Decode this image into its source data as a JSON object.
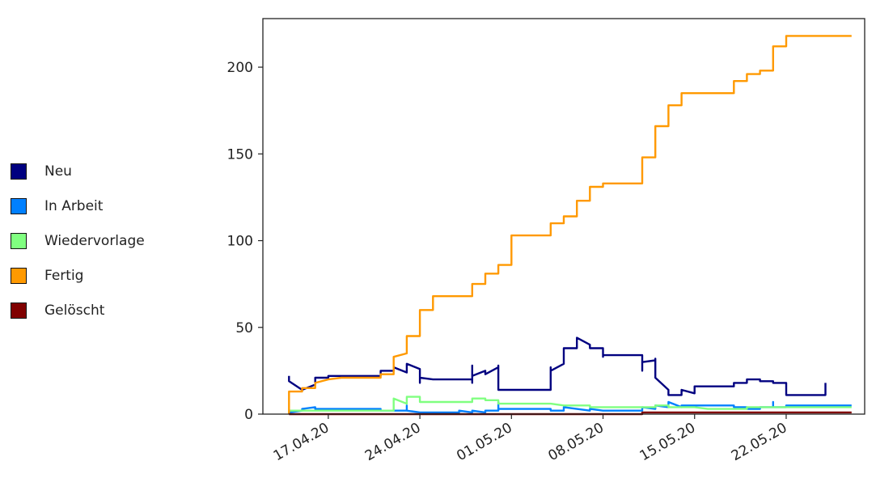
{
  "chart_data": {
    "type": "line",
    "title": "",
    "xlabel": "",
    "ylabel": "",
    "x_start": "2020-04-14",
    "x_end": "2020-05-27",
    "xlim": [
      "2020-04-12",
      "2020-05-28"
    ],
    "ylim": [
      0,
      228
    ],
    "x_ticks": [
      {
        "date": "2020-04-17",
        "label": "17.04.20"
      },
      {
        "date": "2020-04-24",
        "label": "24.04.20"
      },
      {
        "date": "2020-05-01",
        "label": "01.05.20"
      },
      {
        "date": "2020-05-08",
        "label": "08.05.20"
      },
      {
        "date": "2020-05-15",
        "label": "15.05.20"
      },
      {
        "date": "2020-05-22",
        "label": "22.05.20"
      }
    ],
    "y_ticks": [
      0,
      50,
      100,
      150,
      200
    ],
    "grid": false,
    "legend_position": "left",
    "series": [
      {
        "name": "Neu",
        "color": "#000080",
        "points": [
          [
            "2020-04-14",
            22
          ],
          [
            "2020-04-14",
            19
          ],
          [
            "2020-04-15",
            14
          ],
          [
            "2020-04-15",
            14
          ],
          [
            "2020-04-16",
            17
          ],
          [
            "2020-04-16",
            21
          ],
          [
            "2020-04-17",
            21
          ],
          [
            "2020-04-17",
            22
          ],
          [
            "2020-04-18",
            22
          ],
          [
            "2020-04-21",
            22
          ],
          [
            "2020-04-21",
            25
          ],
          [
            "2020-04-22",
            25
          ],
          [
            "2020-04-22",
            27
          ],
          [
            "2020-04-23",
            24
          ],
          [
            "2020-04-23",
            29
          ],
          [
            "2020-04-24",
            26
          ],
          [
            "2020-04-24",
            18
          ],
          [
            "2020-04-24",
            21
          ],
          [
            "2020-04-25",
            20
          ],
          [
            "2020-04-28",
            20
          ],
          [
            "2020-04-28",
            18
          ],
          [
            "2020-04-28",
            28
          ],
          [
            "2020-04-28",
            22
          ],
          [
            "2020-04-29",
            25
          ],
          [
            "2020-04-29",
            23
          ],
          [
            "2020-04-30",
            27
          ],
          [
            "2020-04-30",
            28
          ],
          [
            "2020-04-30",
            27
          ],
          [
            "2020-04-30",
            14
          ],
          [
            "2020-05-03",
            14
          ],
          [
            "2020-05-04",
            14
          ],
          [
            "2020-05-04",
            27
          ],
          [
            "2020-05-04",
            25
          ],
          [
            "2020-05-05",
            29
          ],
          [
            "2020-05-05",
            38
          ],
          [
            "2020-05-06",
            38
          ],
          [
            "2020-05-06",
            44
          ],
          [
            "2020-05-07",
            40
          ],
          [
            "2020-05-07",
            38
          ],
          [
            "2020-05-08",
            38
          ],
          [
            "2020-05-08",
            34
          ],
          [
            "2020-05-08",
            33
          ],
          [
            "2020-05-08",
            34
          ],
          [
            "2020-05-11",
            34
          ],
          [
            "2020-05-11",
            25
          ],
          [
            "2020-05-11",
            30
          ],
          [
            "2020-05-12",
            31
          ],
          [
            "2020-05-12",
            32
          ],
          [
            "2020-05-12",
            21
          ],
          [
            "2020-05-13",
            14
          ],
          [
            "2020-05-13",
            11
          ],
          [
            "2020-05-14",
            11
          ],
          [
            "2020-05-14",
            14
          ],
          [
            "2020-05-15",
            12
          ],
          [
            "2020-05-15",
            16
          ],
          [
            "2020-05-18",
            16
          ],
          [
            "2020-05-18",
            18
          ],
          [
            "2020-05-19",
            18
          ],
          [
            "2020-05-19",
            20
          ],
          [
            "2020-05-20",
            20
          ],
          [
            "2020-05-20",
            19
          ],
          [
            "2020-05-21",
            19
          ],
          [
            "2020-05-21",
            18
          ],
          [
            "2020-05-22",
            18
          ],
          [
            "2020-05-22",
            16
          ],
          [
            "2020-05-22",
            11
          ],
          [
            "2020-05-24",
            11
          ],
          [
            "2020-05-25",
            11
          ],
          [
            "2020-05-25",
            12
          ],
          [
            "2020-05-25",
            18
          ]
        ]
      },
      {
        "name": "In Arbeit",
        "color": "#0080ff",
        "points": [
          [
            "2020-04-14",
            0
          ],
          [
            "2020-04-14",
            1
          ],
          [
            "2020-04-15",
            2
          ],
          [
            "2020-04-15",
            3
          ],
          [
            "2020-04-16",
            4
          ],
          [
            "2020-04-16",
            3
          ],
          [
            "2020-04-21",
            3
          ],
          [
            "2020-04-21",
            2
          ],
          [
            "2020-04-23",
            2
          ],
          [
            "2020-04-23",
            5
          ],
          [
            "2020-04-23",
            2
          ],
          [
            "2020-04-24",
            1
          ],
          [
            "2020-04-27",
            1
          ],
          [
            "2020-04-27",
            2
          ],
          [
            "2020-04-28",
            1
          ],
          [
            "2020-04-28",
            2
          ],
          [
            "2020-04-29",
            1
          ],
          [
            "2020-04-29",
            2
          ],
          [
            "2020-04-30",
            2
          ],
          [
            "2020-04-30",
            7
          ],
          [
            "2020-04-30",
            3
          ],
          [
            "2020-05-04",
            3
          ],
          [
            "2020-05-04",
            2
          ],
          [
            "2020-05-05",
            2
          ],
          [
            "2020-05-05",
            4
          ],
          [
            "2020-05-06",
            3
          ],
          [
            "2020-05-07",
            2
          ],
          [
            "2020-05-07",
            3
          ],
          [
            "2020-05-08",
            2
          ],
          [
            "2020-05-11",
            2
          ],
          [
            "2020-05-11",
            4
          ],
          [
            "2020-05-12",
            3
          ],
          [
            "2020-05-12",
            5
          ],
          [
            "2020-05-13",
            4
          ],
          [
            "2020-05-13",
            7
          ],
          [
            "2020-05-14",
            4
          ],
          [
            "2020-05-14",
            5
          ],
          [
            "2020-05-18",
            5
          ],
          [
            "2020-05-18",
            4
          ],
          [
            "2020-05-19",
            4
          ],
          [
            "2020-05-19",
            3
          ],
          [
            "2020-05-20",
            3
          ],
          [
            "2020-05-20",
            4
          ],
          [
            "2020-05-21",
            4
          ],
          [
            "2020-05-21",
            7
          ],
          [
            "2020-05-21",
            4
          ],
          [
            "2020-05-22",
            4
          ],
          [
            "2020-05-22",
            5
          ],
          [
            "2020-05-27",
            5
          ]
        ]
      },
      {
        "name": "Wiedervorlage",
        "color": "#80ff80",
        "points": [
          [
            "2020-04-14",
            0
          ],
          [
            "2020-04-14",
            2
          ],
          [
            "2020-04-22",
            2
          ],
          [
            "2020-04-22",
            4
          ],
          [
            "2020-04-22",
            9
          ],
          [
            "2020-04-23",
            6
          ],
          [
            "2020-04-23",
            10
          ],
          [
            "2020-04-24",
            10
          ],
          [
            "2020-04-24",
            7
          ],
          [
            "2020-04-28",
            7
          ],
          [
            "2020-04-28",
            9
          ],
          [
            "2020-04-29",
            9
          ],
          [
            "2020-04-29",
            8
          ],
          [
            "2020-04-30",
            8
          ],
          [
            "2020-04-30",
            6
          ],
          [
            "2020-05-04",
            6
          ],
          [
            "2020-05-05",
            5
          ],
          [
            "2020-05-07",
            5
          ],
          [
            "2020-05-07",
            4
          ],
          [
            "2020-05-12",
            4
          ],
          [
            "2020-05-12",
            5
          ],
          [
            "2020-05-13",
            5
          ],
          [
            "2020-05-13",
            4
          ],
          [
            "2020-05-15",
            4
          ],
          [
            "2020-05-16",
            3
          ],
          [
            "2020-05-19",
            3
          ],
          [
            "2020-05-19",
            4
          ],
          [
            "2020-05-27",
            4
          ]
        ]
      },
      {
        "name": "Fertig",
        "color": "#ff9900",
        "points": [
          [
            "2020-04-14",
            0
          ],
          [
            "2020-04-14",
            13
          ],
          [
            "2020-04-15",
            13
          ],
          [
            "2020-04-15",
            15
          ],
          [
            "2020-04-16",
            15
          ],
          [
            "2020-04-16",
            18
          ],
          [
            "2020-04-17",
            20
          ],
          [
            "2020-04-18",
            21
          ],
          [
            "2020-04-21",
            21
          ],
          [
            "2020-04-21",
            23
          ],
          [
            "2020-04-22",
            23
          ],
          [
            "2020-04-22",
            33
          ],
          [
            "2020-04-23",
            35
          ],
          [
            "2020-04-23",
            45
          ],
          [
            "2020-04-24",
            45
          ],
          [
            "2020-04-24",
            60
          ],
          [
            "2020-04-25",
            60
          ],
          [
            "2020-04-25",
            68
          ],
          [
            "2020-04-28",
            68
          ],
          [
            "2020-04-28",
            75
          ],
          [
            "2020-04-29",
            75
          ],
          [
            "2020-04-29",
            81
          ],
          [
            "2020-04-30",
            81
          ],
          [
            "2020-04-30",
            86
          ],
          [
            "2020-05-01",
            86
          ],
          [
            "2020-05-01",
            103
          ],
          [
            "2020-05-04",
            103
          ],
          [
            "2020-05-04",
            110
          ],
          [
            "2020-05-05",
            110
          ],
          [
            "2020-05-05",
            114
          ],
          [
            "2020-05-06",
            114
          ],
          [
            "2020-05-06",
            123
          ],
          [
            "2020-05-07",
            123
          ],
          [
            "2020-05-07",
            131
          ],
          [
            "2020-05-08",
            131
          ],
          [
            "2020-05-08",
            133
          ],
          [
            "2020-05-11",
            133
          ],
          [
            "2020-05-11",
            148
          ],
          [
            "2020-05-12",
            148
          ],
          [
            "2020-05-12",
            166
          ],
          [
            "2020-05-13",
            166
          ],
          [
            "2020-05-13",
            178
          ],
          [
            "2020-05-14",
            178
          ],
          [
            "2020-05-14",
            185
          ],
          [
            "2020-05-18",
            185
          ],
          [
            "2020-05-18",
            192
          ],
          [
            "2020-05-19",
            192
          ],
          [
            "2020-05-19",
            196
          ],
          [
            "2020-05-20",
            196
          ],
          [
            "2020-05-20",
            198
          ],
          [
            "2020-05-21",
            198
          ],
          [
            "2020-05-21",
            212
          ],
          [
            "2020-05-22",
            212
          ],
          [
            "2020-05-22",
            218
          ],
          [
            "2020-05-27",
            218
          ]
        ]
      },
      {
        "name": "Gelöscht",
        "color": "#800000",
        "points": [
          [
            "2020-04-14",
            0
          ],
          [
            "2020-05-11",
            0
          ],
          [
            "2020-05-11",
            1
          ],
          [
            "2020-05-27",
            1
          ]
        ]
      }
    ]
  }
}
